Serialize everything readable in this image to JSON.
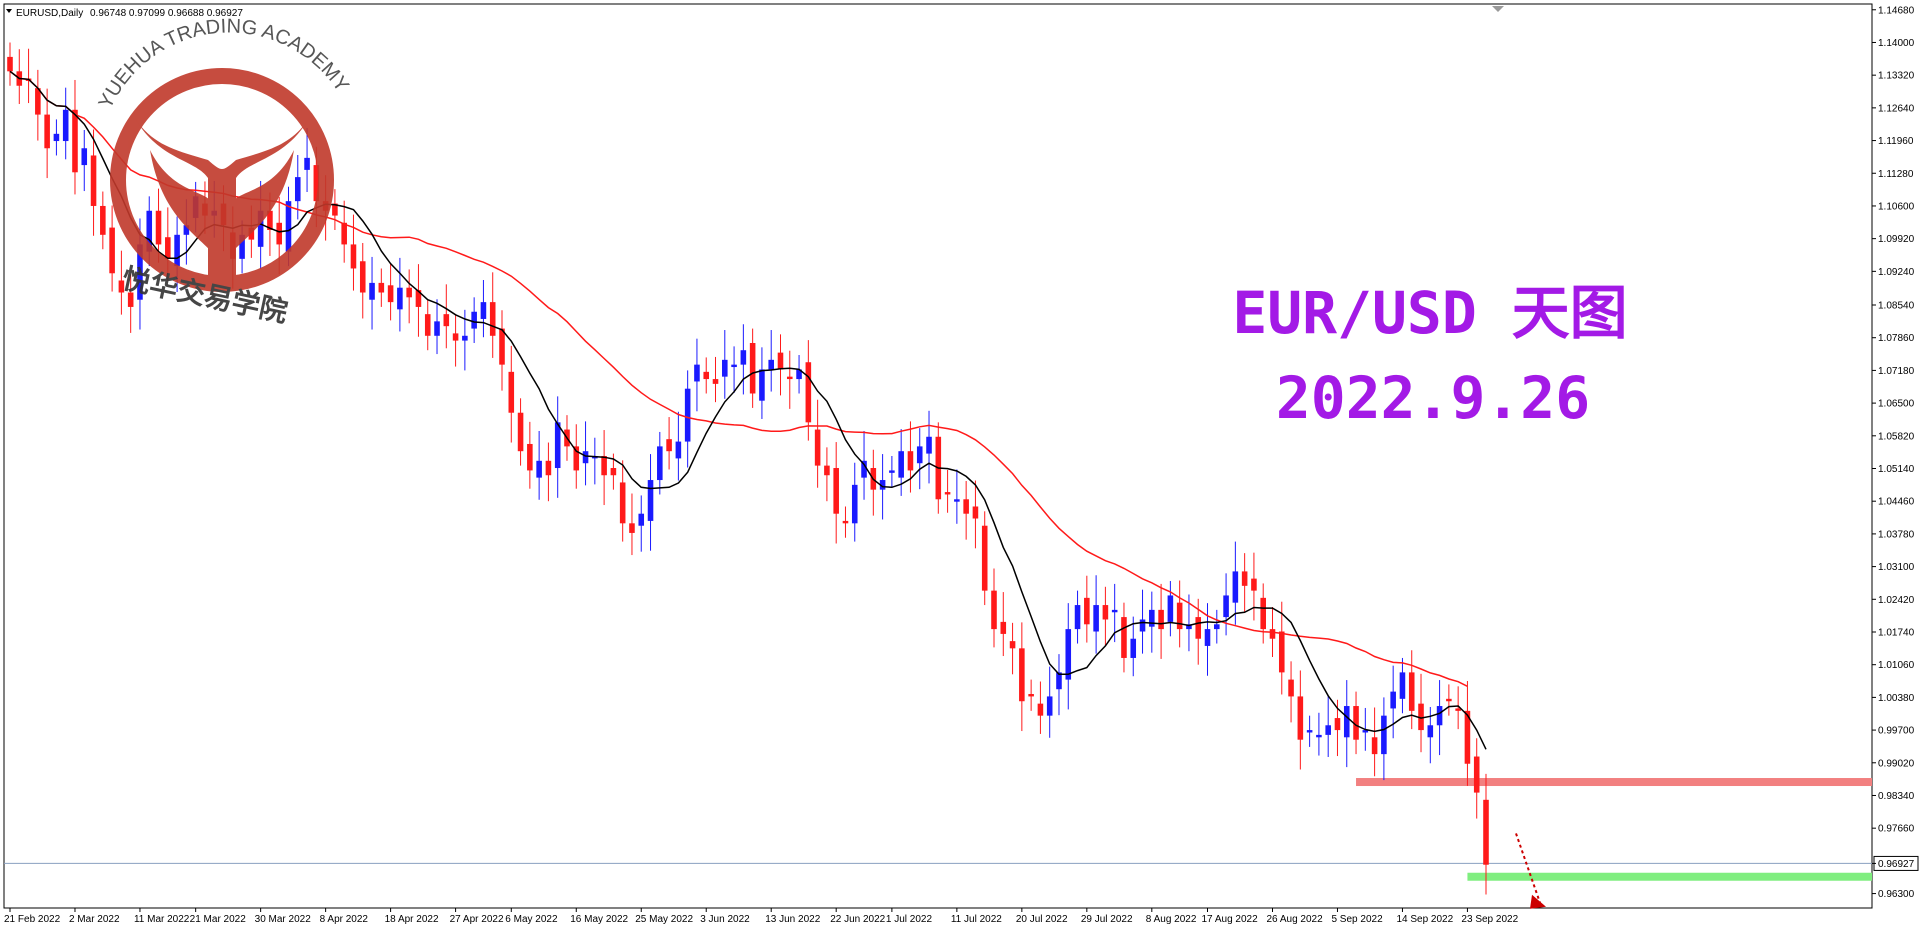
{
  "header": {
    "symbol_label": "EURUSD,Daily",
    "ohlc_label": "0.96748 0.97099 0.96688 0.96927"
  },
  "overlay": {
    "title": "EUR/USD 天图",
    "date": "2022.9.26"
  },
  "watermark": {
    "text_en": "YUEHUA TRADING ACADEMY",
    "text_cn": "悦华交易学院",
    "color": "#c0392b"
  },
  "colors": {
    "bull": "#1a1aff",
    "bear": "#ff1a1a",
    "ma_fast": "#000000",
    "ma_slow": "#ff1a1a",
    "resistance_zone": "#f28080",
    "target_zone": "#80ee80",
    "current_price_line": "#8aa0c0",
    "arrow": "#cc0000"
  },
  "chart_data": {
    "type": "candlestick",
    "symbol": "EURUSD",
    "timeframe": "Daily",
    "y_ticks": [
      "1.14680",
      "1.14000",
      "1.13320",
      "1.12640",
      "1.11960",
      "1.11280",
      "1.10600",
      "1.09920",
      "1.09240",
      "1.08540",
      "1.07860",
      "1.07180",
      "1.06500",
      "1.05820",
      "1.05140",
      "1.04460",
      "1.03780",
      "1.03100",
      "1.02420",
      "1.01740",
      "1.01060",
      "1.00380",
      "0.99700",
      "0.99020",
      "0.98340",
      "0.97660",
      "0.96927",
      "0.96300"
    ],
    "x_ticks": [
      "21 Feb 2022",
      "2 Mar 2022",
      "11 Mar 2022",
      "21 Mar 2022",
      "30 Mar 2022",
      "8 Apr 2022",
      "18 Apr 2022",
      "27 Apr 2022",
      "6 May 2022",
      "16 May 2022",
      "25 May 2022",
      "3 Jun 2022",
      "13 Jun 2022",
      "22 Jun 2022",
      "1 Jul 2022",
      "11 Jul 2022",
      "20 Jul 2022",
      "29 Jul 2022",
      "8 Aug 2022",
      "17 Aug 2022",
      "26 Aug 2022",
      "5 Sep 2022",
      "14 Sep 2022",
      "23 Sep 2022"
    ],
    "x_range": [
      "2022-02-21",
      "2022-09-26"
    ],
    "ylim": [
      0.96,
      1.148
    ],
    "current_price": 0.96927,
    "current_price_label": "0.96927",
    "close_series": [
      1.134,
      1.131,
      1.132,
      1.125,
      1.118,
      1.121,
      1.126,
      1.113,
      1.118,
      1.106,
      1.1,
      1.092,
      1.088,
      1.085,
      1.098,
      1.105,
      1.098,
      1.095,
      1.1,
      1.102,
      1.108,
      1.104,
      1.105,
      1.102,
      1.095,
      1.1,
      1.099,
      1.105,
      1.101,
      1.098,
      1.107,
      1.112,
      1.116,
      1.107,
      1.105,
      1.104,
      1.098,
      1.093,
      1.088,
      1.09,
      1.088,
      1.086,
      1.089,
      1.087,
      1.085,
      1.079,
      1.082,
      1.081,
      1.078,
      1.079,
      1.084,
      1.086,
      1.079,
      1.073,
      1.063,
      1.055,
      1.051,
      1.053,
      1.05,
      1.061,
      1.056,
      1.051,
      1.055,
      1.054,
      1.05,
      1.05,
      1.04,
      1.038,
      1.042,
      1.049,
      1.056,
      1.055,
      1.057,
      1.068,
      1.073,
      1.07,
      1.069,
      1.074,
      1.073,
      1.076,
      1.067,
      1.072,
      1.074,
      1.072,
      1.07,
      1.072,
      1.061,
      1.052,
      1.05,
      1.042,
      1.04,
      1.048,
      1.053,
      1.047,
      1.049,
      1.051,
      1.055,
      1.051,
      1.056,
      1.058,
      1.045,
      1.046,
      1.045,
      1.042,
      1.041,
      1.026,
      1.018,
      1.017,
      1.014,
      1.003,
      1.004,
      1.0,
      1.004,
      1.009,
      1.018,
      1.023,
      1.019,
      1.023,
      1.02,
      1.022,
      1.012,
      1.016,
      1.02,
      1.022,
      1.018,
      1.025,
      1.018,
      1.019,
      1.016,
      1.018,
      1.019,
      1.025,
      1.03,
      1.027,
      1.026,
      1.018,
      1.016,
      1.009,
      1.004,
      0.995,
      0.997,
      0.996,
      0.998,
      0.997,
      1.002,
      0.995,
      0.997,
      0.992,
      1.0,
      1.005,
      1.009,
      1.001,
      0.997,
      0.998,
      1.002,
      1.003,
      1.001,
      0.99,
      0.984,
      0.969
    ],
    "ma_fast_period_label": "",
    "ma_slow_period_label": "",
    "zones": [
      {
        "name": "resistance",
        "level": 0.9862
      },
      {
        "name": "target",
        "level": 0.9665
      }
    ]
  }
}
